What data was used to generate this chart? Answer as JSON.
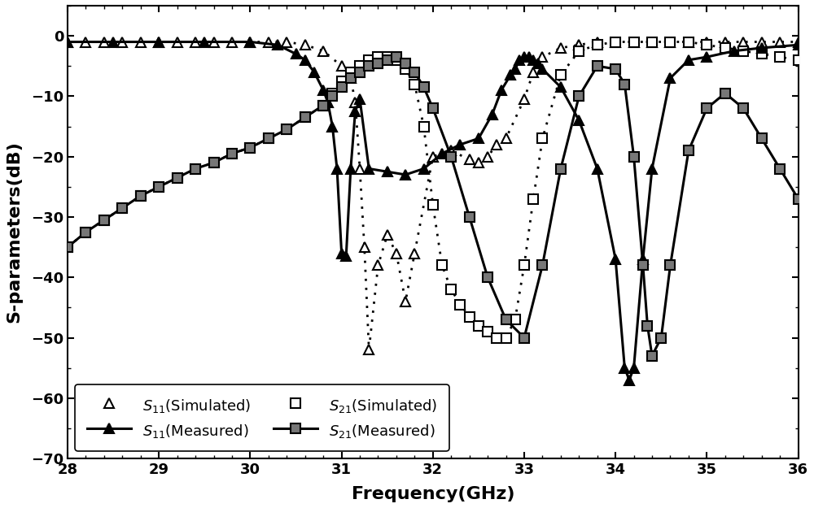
{
  "xlabel": "Frequency(GHz)",
  "ylabel": "S-parameters(dB)",
  "xlim": [
    28,
    36
  ],
  "ylim": [
    -70,
    5
  ],
  "yticks": [
    0,
    -10,
    -20,
    -30,
    -40,
    -50,
    -60,
    -70
  ],
  "xticks": [
    28,
    29,
    30,
    31,
    32,
    33,
    34,
    35,
    36
  ],
  "background": "#ffffff",
  "S11_sim_x": [
    28.0,
    28.2,
    28.4,
    28.6,
    28.8,
    29.0,
    29.2,
    29.4,
    29.6,
    29.8,
    30.0,
    30.2,
    30.4,
    30.6,
    30.8,
    31.0,
    31.1,
    31.15,
    31.2,
    31.25,
    31.3,
    31.4,
    31.5,
    31.6,
    31.7,
    31.8,
    32.0,
    32.2,
    32.4,
    32.5,
    32.6,
    32.7,
    32.8,
    33.0,
    33.1,
    33.2,
    33.4,
    33.6,
    33.8,
    34.0,
    34.2,
    34.4,
    34.6,
    34.8,
    35.0,
    35.2,
    35.4,
    35.6,
    35.8,
    36.0
  ],
  "S11_sim_y": [
    -1.0,
    -1.0,
    -1.0,
    -1.0,
    -1.0,
    -1.0,
    -1.0,
    -1.0,
    -1.0,
    -1.0,
    -1.0,
    -1.0,
    -1.0,
    -1.5,
    -2.5,
    -5.0,
    -7.0,
    -11.0,
    -22.0,
    -35.0,
    -52.0,
    -38.0,
    -33.0,
    -36.0,
    -44.0,
    -36.0,
    -20.0,
    -19.0,
    -20.5,
    -21.0,
    -20.0,
    -18.0,
    -17.0,
    -10.5,
    -6.0,
    -3.5,
    -2.0,
    -1.5,
    -1.0,
    -1.0,
    -1.0,
    -1.0,
    -1.0,
    -1.0,
    -1.0,
    -1.0,
    -1.0,
    -1.0,
    -1.0,
    -1.0
  ],
  "S11_meas_x": [
    28.0,
    28.5,
    29.0,
    29.5,
    30.0,
    30.3,
    30.5,
    30.6,
    30.7,
    30.8,
    30.85,
    30.9,
    30.95,
    31.0,
    31.05,
    31.1,
    31.15,
    31.2,
    31.3,
    31.5,
    31.7,
    31.9,
    32.1,
    32.3,
    32.5,
    32.65,
    32.75,
    32.85,
    32.9,
    32.95,
    33.0,
    33.05,
    33.1,
    33.15,
    33.2,
    33.4,
    33.6,
    33.8,
    34.0,
    34.1,
    34.15,
    34.2,
    34.3,
    34.4,
    34.6,
    34.8,
    35.0,
    35.3,
    35.6,
    36.0
  ],
  "S11_meas_y": [
    -1.0,
    -1.0,
    -1.0,
    -1.0,
    -1.0,
    -1.5,
    -3.0,
    -4.0,
    -6.0,
    -9.0,
    -11.0,
    -15.0,
    -22.0,
    -36.0,
    -36.5,
    -22.0,
    -12.5,
    -10.5,
    -22.0,
    -22.5,
    -23.0,
    -22.0,
    -19.5,
    -18.0,
    -17.0,
    -13.0,
    -9.0,
    -6.5,
    -5.5,
    -4.0,
    -3.5,
    -3.5,
    -4.0,
    -4.5,
    -5.5,
    -8.5,
    -14.0,
    -22.0,
    -37.0,
    -55.0,
    -57.0,
    -55.0,
    -37.0,
    -22.0,
    -7.0,
    -4.0,
    -3.5,
    -2.5,
    -2.0,
    -1.5
  ],
  "S21_sim_x": [
    28.0,
    28.2,
    28.4,
    28.6,
    28.8,
    29.0,
    29.2,
    29.4,
    29.6,
    29.8,
    30.0,
    30.2,
    30.4,
    30.6,
    30.8,
    30.9,
    31.0,
    31.1,
    31.2,
    31.3,
    31.4,
    31.5,
    31.6,
    31.7,
    31.8,
    31.9,
    32.0,
    32.1,
    32.2,
    32.3,
    32.4,
    32.5,
    32.6,
    32.7,
    32.8,
    32.9,
    33.0,
    33.1,
    33.2,
    33.4,
    33.6,
    33.8,
    34.0,
    34.2,
    34.4,
    34.6,
    34.8,
    35.0,
    35.2,
    35.4,
    35.6,
    35.8,
    36.0
  ],
  "S21_sim_y": [
    -35.0,
    -32.5,
    -30.5,
    -28.5,
    -26.5,
    -25.0,
    -23.5,
    -22.0,
    -21.0,
    -19.5,
    -18.5,
    -17.0,
    -15.5,
    -13.5,
    -11.5,
    -9.5,
    -7.5,
    -6.0,
    -5.0,
    -4.0,
    -3.5,
    -3.5,
    -4.0,
    -5.5,
    -8.0,
    -15.0,
    -28.0,
    -38.0,
    -42.0,
    -44.5,
    -46.5,
    -48.0,
    -49.0,
    -50.0,
    -50.0,
    -47.0,
    -38.0,
    -27.0,
    -17.0,
    -6.5,
    -2.5,
    -1.5,
    -1.0,
    -1.0,
    -1.0,
    -1.0,
    -1.0,
    -1.5,
    -2.0,
    -2.5,
    -3.0,
    -3.5,
    -4.0
  ],
  "S21_meas_x": [
    28.0,
    28.2,
    28.4,
    28.6,
    28.8,
    29.0,
    29.2,
    29.4,
    29.6,
    29.8,
    30.0,
    30.2,
    30.4,
    30.6,
    30.8,
    30.9,
    31.0,
    31.1,
    31.2,
    31.3,
    31.4,
    31.5,
    31.6,
    31.7,
    31.8,
    31.9,
    32.0,
    32.2,
    32.4,
    32.6,
    32.8,
    33.0,
    33.2,
    33.4,
    33.6,
    33.8,
    34.0,
    34.1,
    34.2,
    34.3,
    34.35,
    34.4,
    34.5,
    34.6,
    34.8,
    35.0,
    35.2,
    35.4,
    35.6,
    35.8,
    36.0
  ],
  "S21_meas_y": [
    -35.0,
    -32.5,
    -30.5,
    -28.5,
    -26.5,
    -25.0,
    -23.5,
    -22.0,
    -21.0,
    -19.5,
    -18.5,
    -17.0,
    -15.5,
    -13.5,
    -11.5,
    -10.0,
    -8.5,
    -7.0,
    -6.0,
    -5.0,
    -4.5,
    -4.0,
    -3.5,
    -4.5,
    -6.0,
    -8.5,
    -12.0,
    -20.0,
    -30.0,
    -40.0,
    -47.0,
    -50.0,
    -38.0,
    -22.0,
    -10.0,
    -5.0,
    -5.5,
    -8.0,
    -20.0,
    -38.0,
    -48.0,
    -53.0,
    -50.0,
    -38.0,
    -19.0,
    -12.0,
    -9.5,
    -12.0,
    -17.0,
    -22.0,
    -27.0
  ],
  "legend_entries": [
    "$S_{11}$(Simulated)",
    "$S_{11}$(Measured)",
    "$S_{21}$(Simulated)",
    "$S_{21}$(Measured)"
  ]
}
